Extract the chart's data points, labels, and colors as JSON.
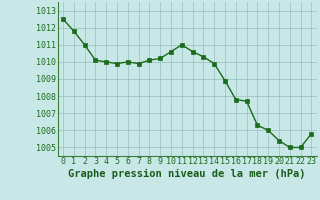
{
  "x": [
    0,
    1,
    2,
    3,
    4,
    5,
    6,
    7,
    8,
    9,
    10,
    11,
    12,
    13,
    14,
    15,
    16,
    17,
    18,
    19,
    20,
    21,
    22,
    23
  ],
  "y": [
    1012.5,
    1011.8,
    1011.0,
    1010.1,
    1010.0,
    1009.9,
    1010.0,
    1009.9,
    1010.1,
    1010.2,
    1010.6,
    1011.0,
    1010.6,
    1010.3,
    1009.9,
    1008.9,
    1007.8,
    1007.7,
    1006.3,
    1006.0,
    1005.4,
    1005.0,
    1005.0,
    1005.8
  ],
  "line_color": "#1a6b1a",
  "marker_color": "#1a6b1a",
  "bg_color": "#c8e8e8",
  "grid_color": "#a0c4c4",
  "xlabel": "Graphe pression niveau de la mer (hPa)",
  "xlabel_color": "#1a5c1a",
  "tick_color": "#1a6b1a",
  "ylim": [
    1004.5,
    1013.5
  ],
  "xlim": [
    -0.5,
    23.5
  ],
  "yticks": [
    1005,
    1006,
    1007,
    1008,
    1009,
    1010,
    1011,
    1012,
    1013
  ],
  "xticks": [
    0,
    1,
    2,
    3,
    4,
    5,
    6,
    7,
    8,
    9,
    10,
    11,
    12,
    13,
    14,
    15,
    16,
    17,
    18,
    19,
    20,
    21,
    22,
    23
  ],
  "marker_size": 2.8,
  "line_width": 1.0,
  "xlabel_fontsize": 7.5,
  "tick_fontsize": 6.0,
  "xlabel_fontweight": "bold"
}
